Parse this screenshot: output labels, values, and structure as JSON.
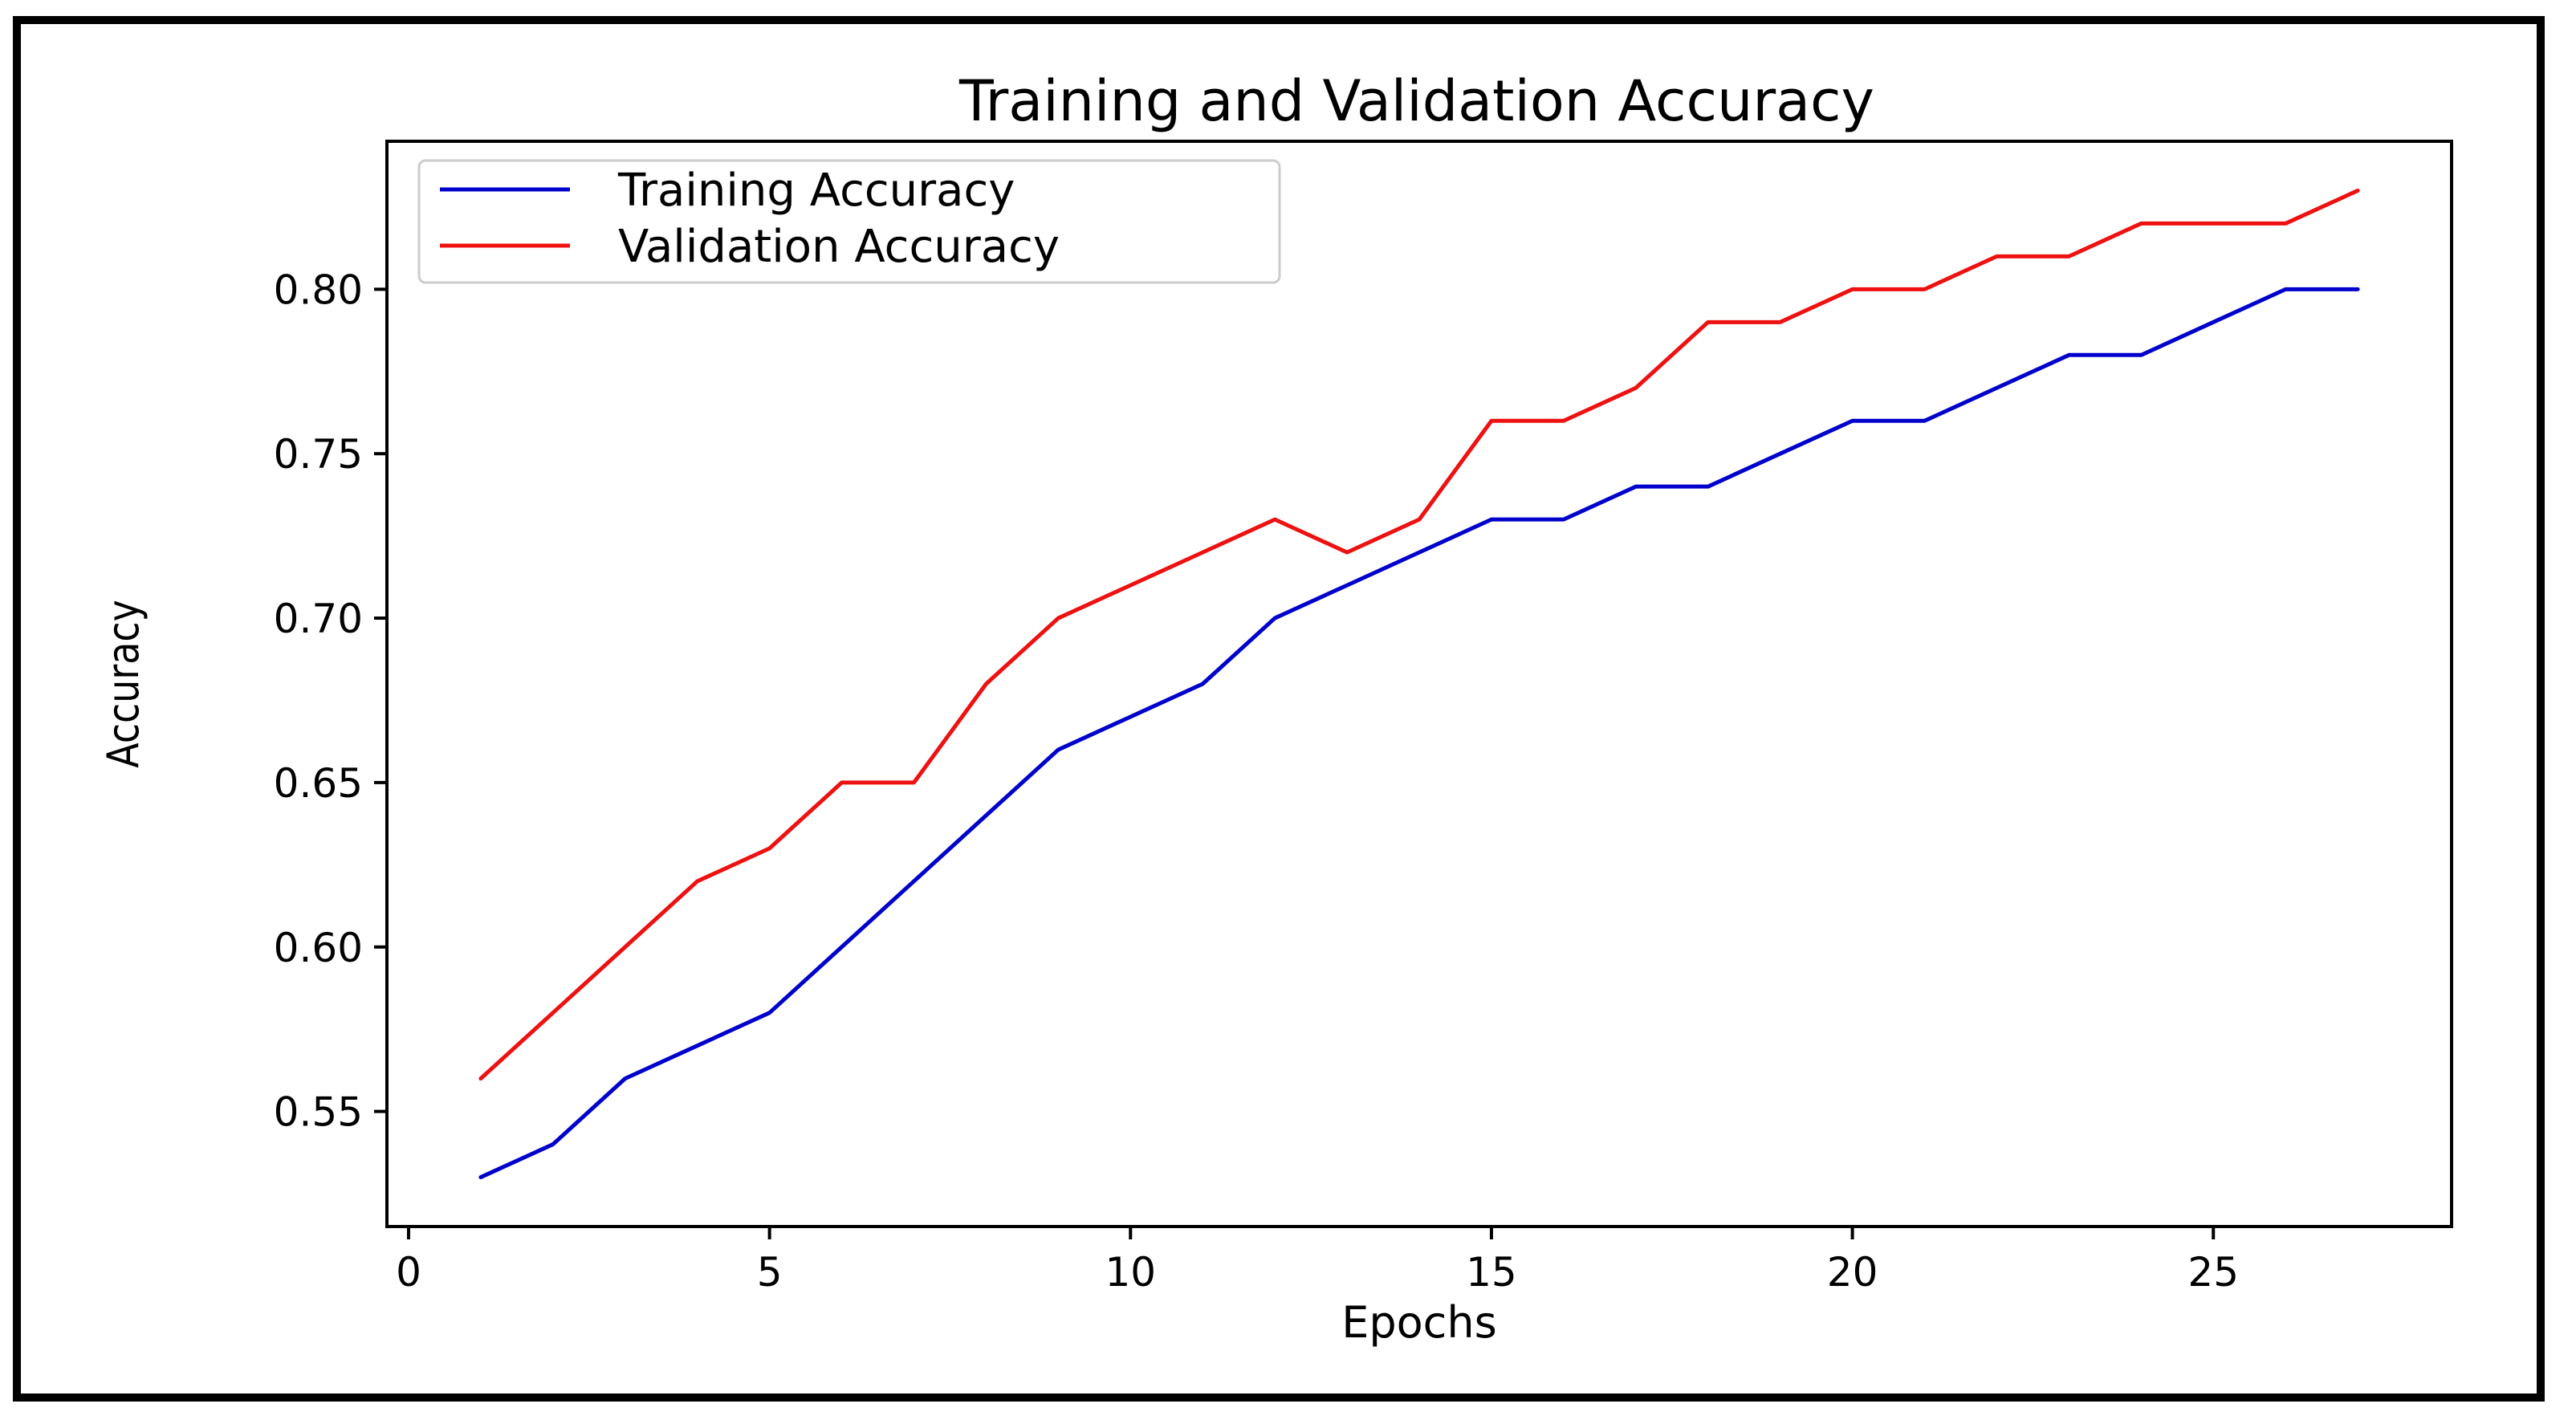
{
  "chart_data": {
    "type": "line",
    "title": "Training and Validation Accuracy",
    "xlabel": "Epochs",
    "ylabel": "Accuracy",
    "xlim": [
      -0.3,
      28.3
    ],
    "ylim": [
      0.515,
      0.845
    ],
    "xticks": [
      0,
      5,
      10,
      15,
      20,
      25
    ],
    "yticks": [
      0.55,
      0.6,
      0.65,
      0.7,
      0.75,
      0.8
    ],
    "x": [
      1,
      2,
      3,
      4,
      5,
      6,
      7,
      8,
      9,
      10,
      11,
      12,
      13,
      14,
      15,
      16,
      17,
      18,
      19,
      20,
      21,
      22,
      23,
      24,
      25,
      26,
      27
    ],
    "series": [
      {
        "name": "Training Accuracy",
        "color": "#0000cc",
        "values": [
          0.53,
          0.54,
          0.56,
          0.57,
          0.58,
          0.6,
          0.62,
          0.64,
          0.66,
          0.67,
          0.68,
          0.7,
          0.71,
          0.72,
          0.73,
          0.73,
          0.74,
          0.74,
          0.75,
          0.76,
          0.76,
          0.77,
          0.78,
          0.78,
          0.79,
          0.8,
          0.8
        ]
      },
      {
        "name": "Validation Accuracy",
        "color": "#ee1111",
        "values": [
          0.56,
          0.58,
          0.6,
          0.62,
          0.63,
          0.65,
          0.65,
          0.68,
          0.7,
          0.71,
          0.72,
          0.73,
          0.72,
          0.73,
          0.76,
          0.76,
          0.77,
          0.79,
          0.79,
          0.8,
          0.8,
          0.81,
          0.81,
          0.82,
          0.82,
          0.82,
          0.83
        ]
      }
    ],
    "grid": false,
    "legend_position": "top-left"
  }
}
